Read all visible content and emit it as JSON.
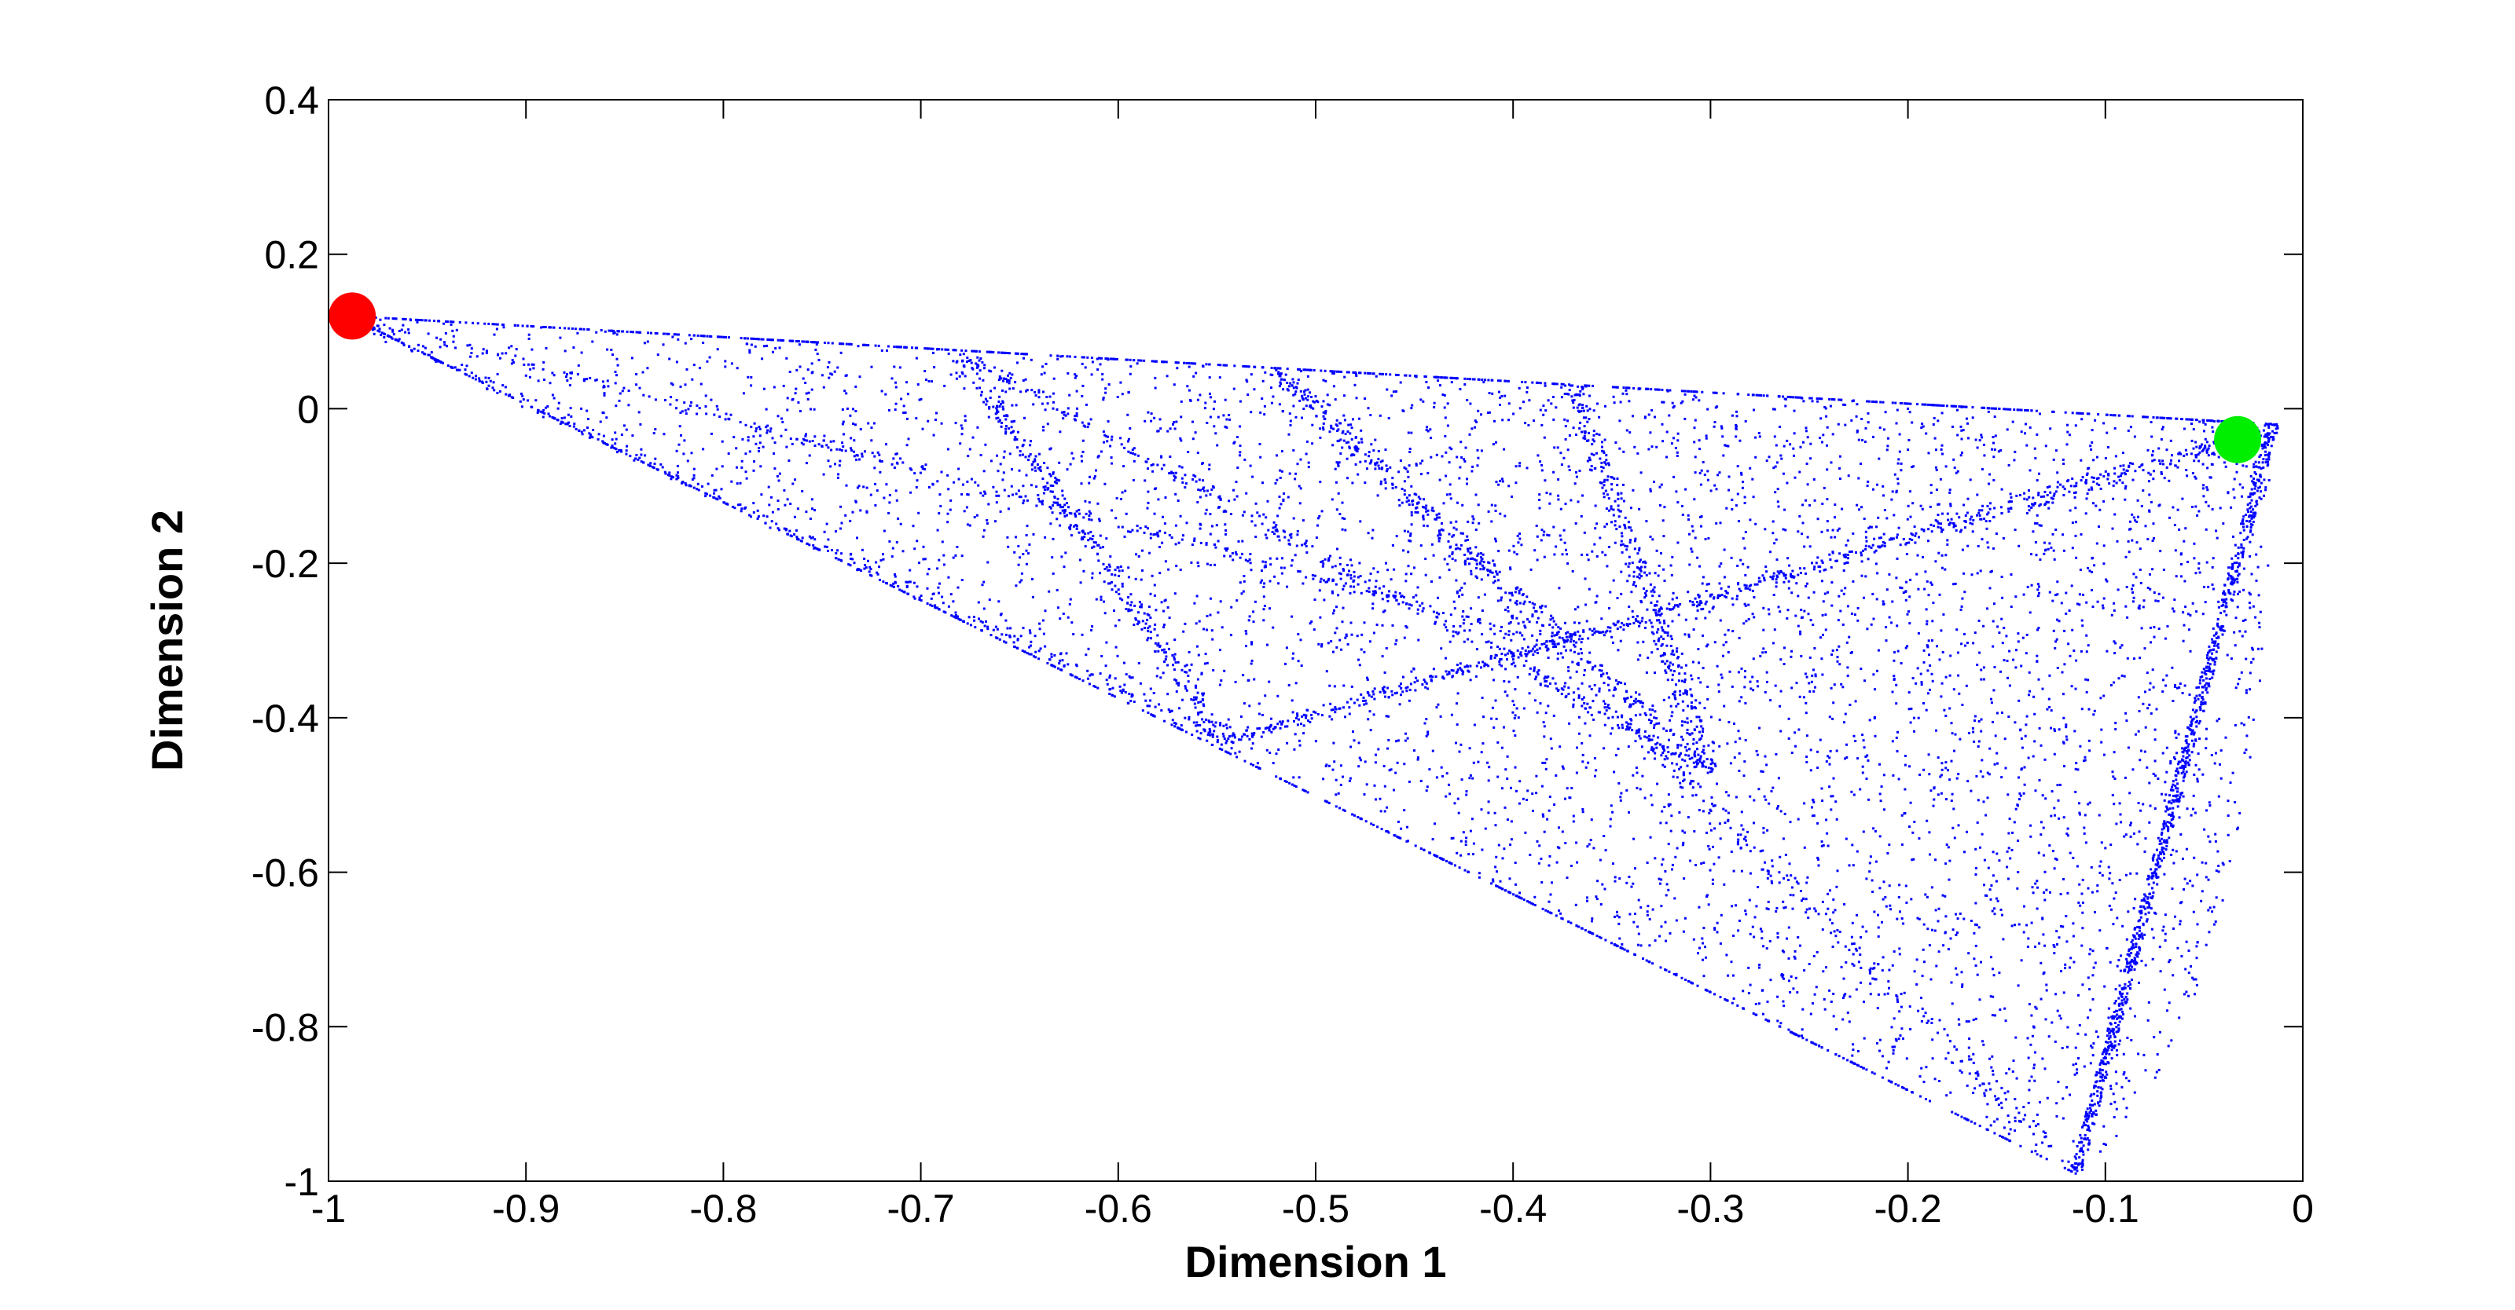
{
  "chart_data": {
    "type": "scatter",
    "title": "",
    "xlabel": "Dimension 1",
    "ylabel": "Dimension 2",
    "xlim": [
      -1,
      0
    ],
    "ylim": [
      -1,
      0.4
    ],
    "grid": false,
    "x_ticks": [
      -1,
      -0.9,
      -0.8,
      -0.7,
      -0.6,
      -0.5,
      -0.4,
      -0.3,
      -0.2,
      -0.1,
      0
    ],
    "x_tick_labels": [
      "-1",
      "-0.9",
      "-0.8",
      "-0.7",
      "-0.6",
      "-0.5",
      "-0.4",
      "-0.3",
      "-0.2",
      "-0.1",
      "0"
    ],
    "y_ticks": [
      0.4,
      0.2,
      0,
      -0.2,
      -0.4,
      -0.6,
      -0.8,
      -1
    ],
    "y_tick_labels": [
      "0.4",
      "0.2",
      "0",
      "-0.2",
      "-0.4",
      "-0.6",
      "-0.8",
      "-1"
    ],
    "series": [
      {
        "style": "dense point cloud",
        "color": "#0000ff",
        "marker": "dot",
        "corners": [
          {
            "x": -0.99,
            "y": 0.12
          },
          {
            "x": -0.015,
            "y": -0.02
          },
          {
            "x": -0.115,
            "y": -0.99
          }
        ],
        "hub": {
          "x": -0.545,
          "y": -0.43
        },
        "note_points": [
          {
            "x": -0.99,
            "y": 0.12
          },
          {
            "x": -0.68,
            "y": 0.07
          },
          {
            "x": -0.52,
            "y": 0.05
          },
          {
            "x": -0.37,
            "y": 0.03
          },
          {
            "x": -0.2,
            "y": 0.0
          },
          {
            "x": -0.04,
            "y": -0.03
          },
          {
            "x": -0.545,
            "y": -0.43
          },
          {
            "x": -0.38,
            "y": -0.3
          },
          {
            "x": -0.3,
            "y": -0.47
          },
          {
            "x": -0.115,
            "y": -0.99
          }
        ]
      },
      {
        "style": "highlight marker",
        "color": "#ff0000",
        "points": [
          {
            "x": -0.988,
            "y": 0.12
          }
        ]
      },
      {
        "style": "highlight marker",
        "color": "#00ee00",
        "points": [
          {
            "x": -0.033,
            "y": -0.04
          }
        ]
      }
    ]
  }
}
